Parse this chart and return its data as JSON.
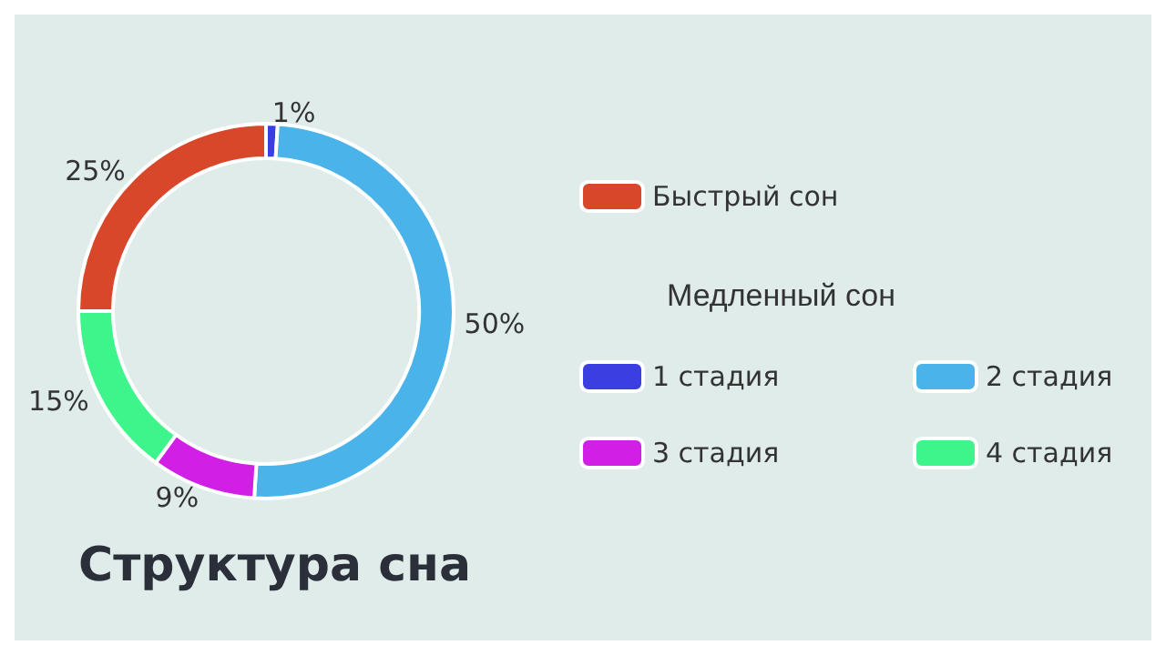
{
  "chart_data": {
    "type": "donut",
    "title": "Структура сна",
    "legend_title": "Медленный сон",
    "legend": "right",
    "categories": [
      "1 стадия",
      "2 стадия",
      "3 стадия",
      "4 стадия",
      "Быстрый сон"
    ],
    "values": [
      1,
      50,
      9,
      15,
      25
    ],
    "colors": [
      "#3b3ee0",
      "#4ab4ea",
      "#d21fe6",
      "#3ef58c",
      "#d9472b"
    ],
    "value_labels": [
      "1%",
      "50%",
      "9%",
      "15%",
      "25%"
    ]
  }
}
